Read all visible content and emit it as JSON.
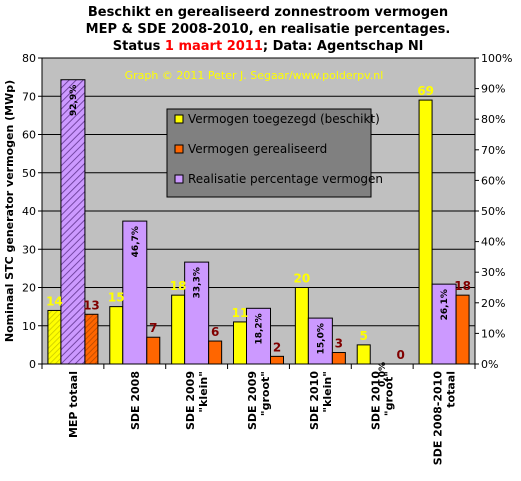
{
  "chart_data": {
    "type": "bar",
    "title_line1": "Beschikt en gerealiseerd zonnestroom vermogen",
    "title_line2": "MEP & SDE 2008-2010, en realisatie percentages.",
    "title_line3_prefix": "Status",
    "title_line3_date": "1 maart 2011",
    "title_line3_suffix": "; Data: Agentschap Nl",
    "watermark": "Graph © 2011 Peter J. Segaar/www.polderpv.nl",
    "ylabel": "Nominaal STC generator vermogen (MWp)",
    "ylim": [
      0,
      80
    ],
    "y_ticks": [
      "0",
      "10",
      "20",
      "30",
      "40",
      "50",
      "60",
      "70",
      "80"
    ],
    "y2lim": [
      0,
      100
    ],
    "y2_ticks": [
      "0%",
      "10%",
      "20%",
      "30%",
      "40%",
      "50%",
      "60%",
      "70%",
      "80%",
      "90%",
      "100%"
    ],
    "categories": [
      [
        "MEP totaal"
      ],
      [
        "SDE 2008"
      ],
      [
        "SDE 2009",
        "\"klein\""
      ],
      [
        "SDE 2009",
        "\"groot\""
      ],
      [
        "SDE 2010",
        "\"klein\""
      ],
      [
        "SDE 2010",
        "\"groot\""
      ],
      [
        "SDE 2008-2010",
        "totaal"
      ]
    ],
    "series": [
      {
        "name": "Vermogen toegezegd (beschikt)",
        "axis": "left",
        "color": "#ffff00",
        "values": [
          14,
          15,
          18,
          11,
          20,
          5,
          69
        ],
        "labels": [
          "14",
          "15",
          "18",
          "11",
          "20",
          "5",
          "69"
        ]
      },
      {
        "name": "Vermogen gerealiseerd",
        "axis": "left",
        "color": "#ff6600",
        "values": [
          13,
          7,
          6,
          2,
          3,
          0,
          18
        ],
        "labels": [
          "13",
          "7",
          "6",
          "2",
          "3",
          "0",
          "18"
        ]
      },
      {
        "name": "Realisatie percentage vermogen",
        "axis": "right",
        "color": "#cc99ff",
        "values": [
          92.9,
          46.7,
          33.3,
          18.2,
          15.0,
          0.0,
          26.1
        ],
        "labels": [
          "92,9%",
          "46,7%",
          "33,3%",
          "18,2%",
          "15,0%",
          "0,0%",
          "26,1%"
        ]
      }
    ],
    "plot_background": "#c0c0c0",
    "legend_background": "#808080",
    "legend_position": "center",
    "grid": true,
    "hatched_category": "MEP totaal"
  }
}
